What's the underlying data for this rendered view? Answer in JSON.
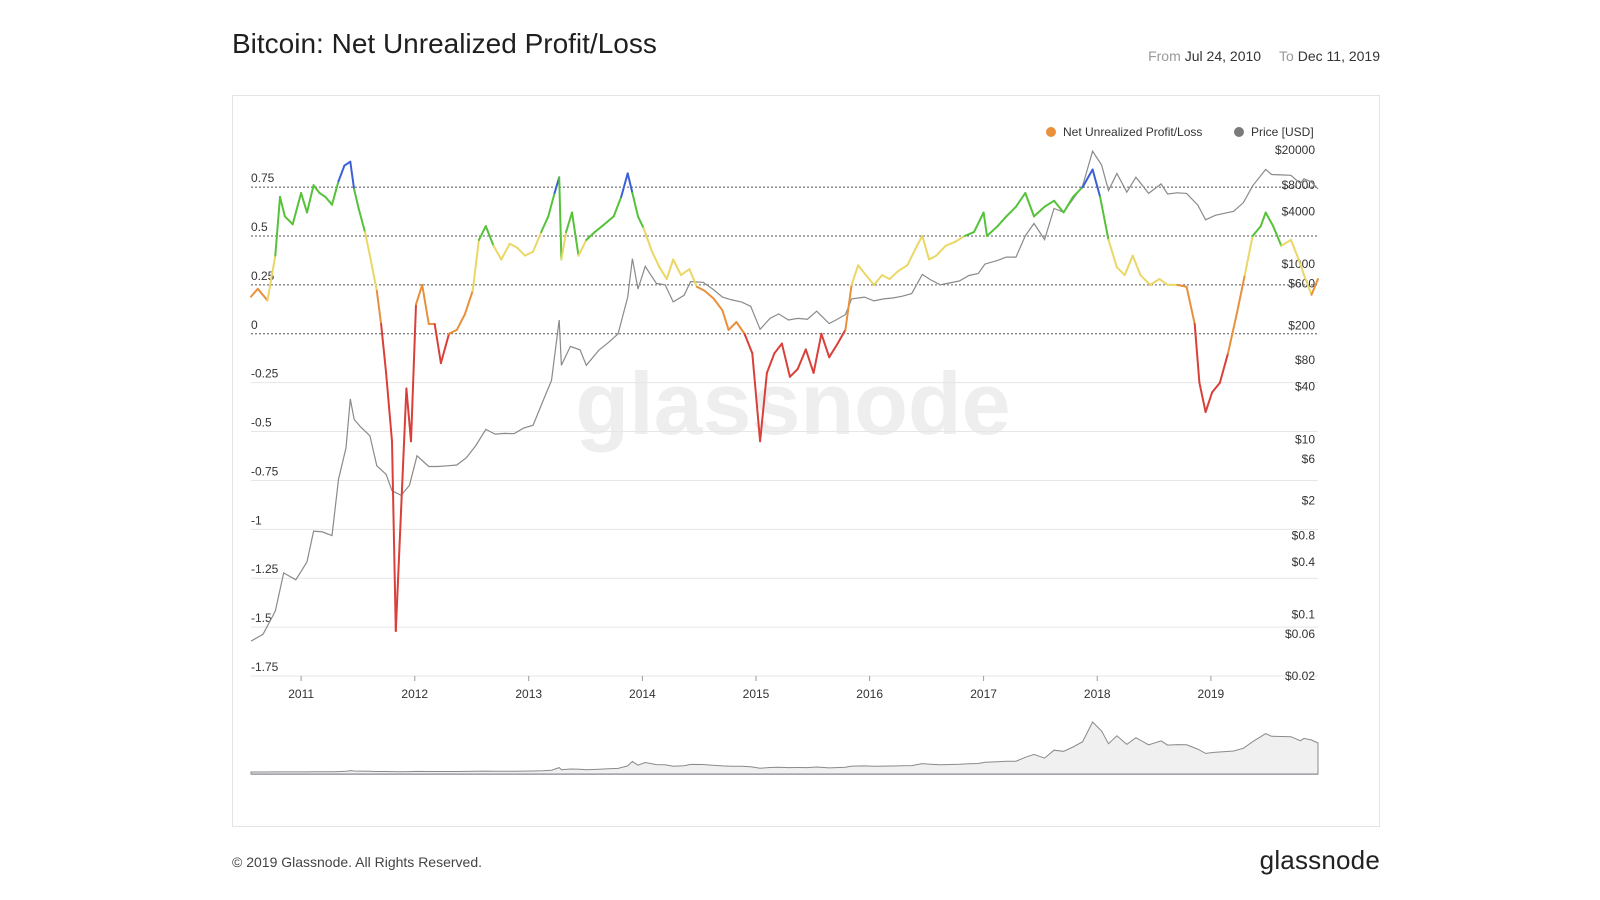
{
  "header": {
    "title": "Bitcoin: Net Unrealized Profit/Loss",
    "from_label": "From",
    "from_value": "Jul 24, 2010",
    "to_label": "To",
    "to_value": "Dec 11, 2019"
  },
  "footer": {
    "copyright": "© 2019 Glassnode. All Rights Reserved.",
    "logo": "glassnode"
  },
  "watermark": "glassnode",
  "colors": {
    "nupl_legend": "#e8903a",
    "price_legend": "#7a7a7a",
    "capitulation": "#d9403a",
    "hope_fear": "#e8903a",
    "optimism_anxiety": "#ead766",
    "belief_denial": "#55c23a",
    "euphoria_greed": "#3b5fd6"
  },
  "chart_data": {
    "type": "line",
    "legend": [
      "Net Unrealized Profit/Loss",
      "Price [USD]"
    ],
    "legend_placement": "top-right",
    "grid": true,
    "x_ticks": [
      "2011",
      "2012",
      "2013",
      "2014",
      "2015",
      "2016",
      "2017",
      "2018",
      "2019"
    ],
    "x_range": [
      "2010-07-24",
      "2019-12-11"
    ],
    "left_axis": {
      "ticks": [
        0.75,
        0.5,
        0.25,
        0,
        -0.25,
        -0.5,
        -0.75,
        -1,
        -1.25,
        -1.5,
        -1.75
      ],
      "tick_labels": [
        "0.75",
        "0.5",
        "0.25",
        "0",
        "-0.25",
        "-0.5",
        "-0.75",
        "-1",
        "-1.25",
        "-1.5",
        "-1.75"
      ],
      "range": [
        -1.75,
        0.95
      ]
    },
    "right_axis": {
      "scale": "log",
      "tick_labels": [
        "$20000",
        "$8000",
        "$4000",
        "$1000",
        "$600",
        "$200",
        "$80",
        "$40",
        "$10",
        "$6",
        "$2",
        "$0.8",
        "$0.4",
        "$0.1",
        "$0.06",
        "$0.02"
      ],
      "ticks": [
        20000,
        8000,
        4000,
        1000,
        600,
        200,
        80,
        40,
        10,
        6,
        2,
        0.8,
        0.4,
        0.1,
        0.06,
        0.02
      ],
      "range": [
        0.02,
        20000
      ]
    },
    "series": [
      {
        "name": "Net Unrealized Profit/Loss",
        "x": [
          "2010-07-24",
          "2010-08-15",
          "2010-09-15",
          "2010-10-10",
          "2010-10-25",
          "2010-11-10",
          "2010-12-05",
          "2011-01-01",
          "2011-01-20",
          "2011-02-10",
          "2011-03-01",
          "2011-03-20",
          "2011-04-10",
          "2011-05-01",
          "2011-05-20",
          "2011-06-08",
          "2011-06-20",
          "2011-07-05",
          "2011-07-25",
          "2011-08-10",
          "2011-09-01",
          "2011-09-15",
          "2011-10-01",
          "2011-10-20",
          "2011-11-01",
          "2011-11-18",
          "2011-12-05",
          "2011-12-20",
          "2012-01-05",
          "2012-01-25",
          "2012-02-15",
          "2012-03-05",
          "2012-03-25",
          "2012-04-20",
          "2012-05-15",
          "2012-06-10",
          "2012-07-05",
          "2012-07-25",
          "2012-08-16",
          "2012-09-10",
          "2012-10-05",
          "2012-11-01",
          "2012-11-25",
          "2012-12-20",
          "2013-01-15",
          "2013-02-10",
          "2013-03-05",
          "2013-03-25",
          "2013-04-09",
          "2013-04-16",
          "2013-05-01",
          "2013-05-20",
          "2013-06-10",
          "2013-07-05",
          "2013-08-01",
          "2013-09-01",
          "2013-10-01",
          "2013-10-25",
          "2013-11-15",
          "2013-11-30",
          "2013-12-18",
          "2014-01-05",
          "2014-02-01",
          "2014-02-25",
          "2014-03-20",
          "2014-04-10",
          "2014-05-05",
          "2014-06-01",
          "2014-06-25",
          "2014-07-20",
          "2014-08-18",
          "2014-09-15",
          "2014-10-05",
          "2014-10-30",
          "2014-11-25",
          "2014-12-20",
          "2015-01-14",
          "2015-02-05",
          "2015-03-01",
          "2015-03-25",
          "2015-04-20",
          "2015-05-15",
          "2015-06-10",
          "2015-07-05",
          "2015-07-30",
          "2015-08-24",
          "2015-09-20",
          "2015-10-15",
          "2015-11-04",
          "2015-11-25",
          "2015-12-20",
          "2016-01-15",
          "2016-02-10",
          "2016-03-05",
          "2016-04-01",
          "2016-05-01",
          "2016-06-01",
          "2016-06-18",
          "2016-07-10",
          "2016-08-02",
          "2016-09-01",
          "2016-10-01",
          "2016-11-01",
          "2016-12-01",
          "2017-01-01",
          "2017-01-12",
          "2017-02-15",
          "2017-03-15",
          "2017-04-15",
          "2017-05-15",
          "2017-06-12",
          "2017-07-16",
          "2017-08-15",
          "2017-09-15",
          "2017-10-15",
          "2017-11-15",
          "2017-12-17",
          "2018-01-10",
          "2018-02-06",
          "2018-03-05",
          "2018-03-30",
          "2018-04-25",
          "2018-05-20",
          "2018-06-20",
          "2018-07-20",
          "2018-08-15",
          "2018-09-15",
          "2018-10-15",
          "2018-11-10",
          "2018-11-25",
          "2018-12-15",
          "2019-01-05",
          "2019-01-30",
          "2019-02-25",
          "2019-03-25",
          "2019-04-20",
          "2019-05-15",
          "2019-06-10",
          "2019-06-26",
          "2019-07-20",
          "2019-08-15",
          "2019-09-15",
          "2019-10-10",
          "2019-10-27",
          "2019-11-20",
          "2019-12-11"
        ],
        "y": [
          0.19,
          0.23,
          0.17,
          0.4,
          0.7,
          0.6,
          0.56,
          0.72,
          0.62,
          0.76,
          0.72,
          0.7,
          0.66,
          0.78,
          0.86,
          0.88,
          0.74,
          0.64,
          0.52,
          0.4,
          0.22,
          0.05,
          -0.2,
          -0.55,
          -1.52,
          -0.9,
          -0.28,
          -0.55,
          0.15,
          0.25,
          0.05,
          0.05,
          -0.15,
          0.0,
          0.02,
          0.1,
          0.22,
          0.48,
          0.55,
          0.45,
          0.38,
          0.46,
          0.44,
          0.4,
          0.42,
          0.52,
          0.6,
          0.72,
          0.8,
          0.38,
          0.52,
          0.62,
          0.4,
          0.48,
          0.52,
          0.56,
          0.6,
          0.7,
          0.82,
          0.72,
          0.6,
          0.54,
          0.42,
          0.34,
          0.28,
          0.38,
          0.3,
          0.33,
          0.24,
          0.22,
          0.18,
          0.12,
          0.02,
          0.06,
          0.0,
          -0.1,
          -0.55,
          -0.2,
          -0.1,
          -0.05,
          -0.22,
          -0.18,
          -0.08,
          -0.2,
          0.0,
          -0.12,
          -0.05,
          0.02,
          0.25,
          0.35,
          0.3,
          0.25,
          0.3,
          0.28,
          0.32,
          0.35,
          0.45,
          0.5,
          0.38,
          0.4,
          0.45,
          0.47,
          0.5,
          0.52,
          0.62,
          0.5,
          0.55,
          0.6,
          0.65,
          0.72,
          0.6,
          0.65,
          0.68,
          0.62,
          0.7,
          0.75,
          0.84,
          0.7,
          0.48,
          0.34,
          0.3,
          0.4,
          0.3,
          0.25,
          0.28,
          0.25,
          0.25,
          0.24,
          0.05,
          -0.25,
          -0.4,
          -0.3,
          -0.25,
          -0.1,
          0.1,
          0.3,
          0.5,
          0.55,
          0.62,
          0.55,
          0.45,
          0.48,
          0.38,
          0.3,
          0.2,
          0.28
        ]
      },
      {
        "name": "Price [USD]",
        "x": [
          "2010-07-24",
          "2010-09-01",
          "2010-10-10",
          "2010-11-06",
          "2010-12-15",
          "2011-01-20",
          "2011-02-10",
          "2011-03-10",
          "2011-04-10",
          "2011-05-01",
          "2011-05-25",
          "2011-06-08",
          "2011-06-20",
          "2011-07-10",
          "2011-08-10",
          "2011-09-01",
          "2011-10-01",
          "2011-10-20",
          "2011-11-18",
          "2011-12-15",
          "2012-01-08",
          "2012-02-15",
          "2012-03-15",
          "2012-04-15",
          "2012-05-15",
          "2012-06-15",
          "2012-07-15",
          "2012-08-16",
          "2012-09-15",
          "2012-10-15",
          "2012-11-15",
          "2012-12-15",
          "2013-01-15",
          "2013-02-15",
          "2013-03-15",
          "2013-04-09",
          "2013-04-16",
          "2013-05-15",
          "2013-06-15",
          "2013-07-05",
          "2013-08-15",
          "2013-09-15",
          "2013-10-15",
          "2013-11-15",
          "2013-11-30",
          "2013-12-18",
          "2014-01-10",
          "2014-02-15",
          "2014-03-15",
          "2014-04-10",
          "2014-05-15",
          "2014-06-05",
          "2014-07-15",
          "2014-08-15",
          "2014-09-15",
          "2014-10-15",
          "2014-11-15",
          "2014-12-15",
          "2015-01-14",
          "2015-02-15",
          "2015-03-15",
          "2015-04-15",
          "2015-05-15",
          "2015-06-15",
          "2015-07-15",
          "2015-08-24",
          "2015-09-15",
          "2015-10-15",
          "2015-11-04",
          "2015-12-15",
          "2016-01-15",
          "2016-02-15",
          "2016-03-15",
          "2016-04-15",
          "2016-05-15",
          "2016-06-18",
          "2016-07-15",
          "2016-08-15",
          "2016-09-15",
          "2016-10-15",
          "2016-11-15",
          "2016-12-15",
          "2017-01-05",
          "2017-02-15",
          "2017-03-15",
          "2017-04-15",
          "2017-05-15",
          "2017-06-12",
          "2017-07-16",
          "2017-08-15",
          "2017-09-15",
          "2017-10-15",
          "2017-11-15",
          "2017-12-17",
          "2018-01-15",
          "2018-02-06",
          "2018-03-05",
          "2018-04-06",
          "2018-05-05",
          "2018-06-15",
          "2018-07-25",
          "2018-08-15",
          "2018-09-15",
          "2018-10-15",
          "2018-11-20",
          "2018-12-15",
          "2019-01-15",
          "2019-02-15",
          "2019-03-15",
          "2019-04-15",
          "2019-05-15",
          "2019-06-26",
          "2019-07-15",
          "2019-08-15",
          "2019-09-15",
          "2019-10-15",
          "2019-10-27",
          "2019-11-20",
          "2019-12-11"
        ],
        "y": [
          0.05,
          0.06,
          0.11,
          0.3,
          0.25,
          0.4,
          0.9,
          0.88,
          0.8,
          3.5,
          8,
          29,
          17,
          14,
          11,
          5,
          4,
          2.6,
          2.3,
          3,
          6.5,
          4.9,
          4.9,
          5,
          5.1,
          6.2,
          8.5,
          13,
          11.5,
          11.7,
          11.6,
          13.4,
          14.5,
          27,
          47,
          230,
          70,
          115,
          105,
          70,
          105,
          128,
          160,
          420,
          1150,
          520,
          940,
          600,
          580,
          370,
          440,
          630,
          620,
          520,
          420,
          390,
          370,
          330,
          180,
          240,
          270,
          230,
          240,
          235,
          290,
          210,
          230,
          265,
          400,
          420,
          380,
          400,
          410,
          430,
          460,
          760,
          660,
          580,
          610,
          640,
          740,
          780,
          1000,
          1100,
          1200,
          1200,
          2100,
          2900,
          1900,
          4300,
          3900,
          5500,
          7800,
          19400,
          13500,
          6900,
          10800,
          6600,
          9800,
          6400,
          8200,
          6300,
          6500,
          6400,
          4700,
          3200,
          3600,
          3800,
          4000,
          5000,
          7800,
          12000,
          10500,
          10400,
          10300,
          8300,
          9400,
          8600,
          7200
        ]
      }
    ]
  }
}
